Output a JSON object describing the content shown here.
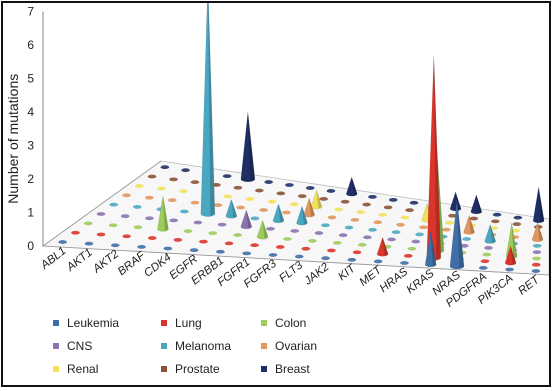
{
  "chart_data": {
    "type": "3d-cone",
    "title": "",
    "ylabel": "Number of mutations",
    "ylim": [
      0,
      7
    ],
    "yticks": [
      "0",
      "1",
      "2",
      "3",
      "4",
      "5",
      "6",
      "7"
    ],
    "genes": [
      "ABL1",
      "AKT1",
      "AKT2",
      "BRAF",
      "CDK4",
      "EGFR",
      "ERBB1",
      "FGFR1",
      "FGFR3",
      "FLT3",
      "JAK2",
      "KIT",
      "MET",
      "HRAS",
      "KRAS",
      "NRAS",
      "PDGFRA",
      "PIK3CA",
      "RET"
    ],
    "series": [
      {
        "name": "Leukemia",
        "color": "#3f6fa6"
      },
      {
        "name": "Lung",
        "color": "#d9352a"
      },
      {
        "name": "Colon",
        "color": "#9ccc5a"
      },
      {
        "name": "CNS",
        "color": "#8a72b0"
      },
      {
        "name": "Melanoma",
        "color": "#4aa7c2"
      },
      {
        "name": "Ovarian",
        "color": "#e0965c"
      },
      {
        "name": "Renal",
        "color": "#f3e05a"
      },
      {
        "name": "Prostate",
        "color": "#8b5236"
      },
      {
        "name": "Breast",
        "color": "#1f2f66"
      }
    ],
    "points": [
      {
        "gene": "BRAF",
        "series": "Colon",
        "value": 1
      },
      {
        "gene": "CDK4",
        "series": "Melanoma",
        "value": 7
      },
      {
        "gene": "CDK4",
        "series": "Breast",
        "value": 2
      },
      {
        "gene": "EGFR",
        "series": "Melanoma",
        "value": 0.5
      },
      {
        "gene": "ERBB1",
        "series": "CNS",
        "value": 0.5
      },
      {
        "gene": "FGFR1",
        "series": "Melanoma",
        "value": 0.5
      },
      {
        "gene": "FGFR1",
        "series": "Colon",
        "value": 0.5
      },
      {
        "gene": "FGFR3",
        "series": "Melanoma",
        "value": 0.5
      },
      {
        "gene": "FGFR3",
        "series": "Ovarian",
        "value": 0.5
      },
      {
        "gene": "FGFR3",
        "series": "Renal",
        "value": 0.5
      },
      {
        "gene": "FLT3",
        "series": "Breast",
        "value": 0.5
      },
      {
        "gene": "MET",
        "series": "Lung",
        "value": 0.5
      },
      {
        "gene": "HRAS",
        "series": "Renal",
        "value": 0.5
      },
      {
        "gene": "KRAS",
        "series": "Leukemia",
        "value": 1
      },
      {
        "gene": "KRAS",
        "series": "Lung",
        "value": 6
      },
      {
        "gene": "KRAS",
        "series": "Colon",
        "value": 3
      },
      {
        "gene": "KRAS",
        "series": "Breast",
        "value": 0.5
      },
      {
        "gene": "NRAS",
        "series": "Leukemia",
        "value": 2
      },
      {
        "gene": "NRAS",
        "series": "Ovarian",
        "value": 0.5
      },
      {
        "gene": "NRAS",
        "series": "Breast",
        "value": 0.5
      },
      {
        "gene": "PDGFRA",
        "series": "Melanoma",
        "value": 0.5
      },
      {
        "gene": "PIK3CA",
        "series": "Lung",
        "value": 0.5
      },
      {
        "gene": "PIK3CA",
        "series": "Colon",
        "value": 1
      },
      {
        "gene": "RET",
        "series": "Ovarian",
        "value": 0.5
      },
      {
        "gene": "RET",
        "series": "Breast",
        "value": 1
      }
    ],
    "legend_position": "bottom-left",
    "grid": false
  }
}
